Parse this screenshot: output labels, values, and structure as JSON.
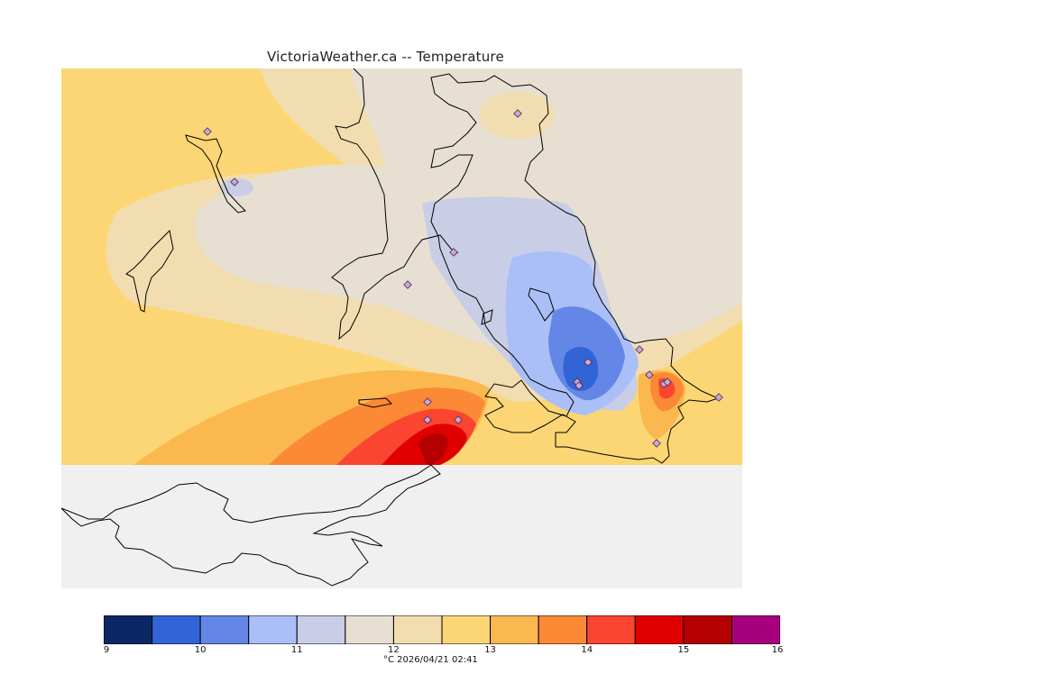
{
  "title": "VictoriaWeather.ca -- Temperature",
  "timestamp": "°C  2026/04/21 02:41",
  "map": {
    "background": "#f0f0f0",
    "coast_color": "#000000",
    "stations": 17,
    "station_marker": "diamond-icon"
  },
  "legend": {
    "colors": [
      "#0c2766",
      "#3264d6",
      "#6486e6",
      "#aabff7",
      "#c9cee6",
      "#e6dfd2",
      "#f2ddb0",
      "#fcd674",
      "#fab84f",
      "#fb8935",
      "#fa4530",
      "#e00000",
      "#b40000",
      "#a8007c"
    ],
    "ticks": [
      "9",
      "10",
      "11",
      "12",
      "13",
      "14",
      "15",
      "16"
    ]
  }
}
